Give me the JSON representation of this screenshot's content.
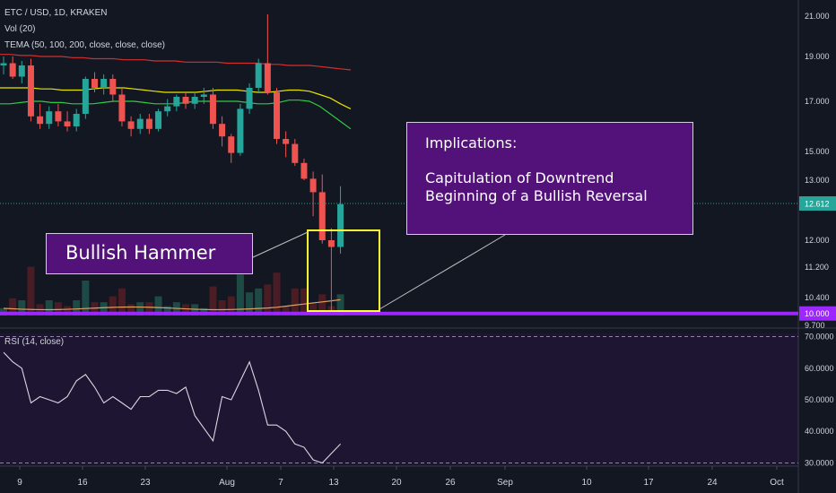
{
  "header": {
    "symbol": "ETC / USD, 1D, KRAKEN",
    "vol": "Vol (20)",
    "tema": "TEMA (50, 100, 200, close, close, close)",
    "rsi": "RSI (14, close)"
  },
  "annotations": {
    "hammer_label": "Bullish Hammer",
    "implications_title": "Implications:",
    "implications_line1": "Capitulation of Downtrend",
    "implications_line2": "Beginning of a Bullish Reversal"
  },
  "colors": {
    "background": "#131722",
    "up": "#26a69a",
    "down": "#ef5350",
    "tema50": "#2ecc40",
    "tema100": "#e6e600",
    "tema200": "#d32f2f",
    "support": "#9c27ff",
    "highlight": "#ffff33",
    "annotation_bg": "#52127a",
    "rsi_pane": "#1e1533"
  },
  "chart_data": [
    {
      "type": "candlestick",
      "title": "ETC / USD, 1D, KRAKEN",
      "x_ticks": [
        "9",
        "16",
        "23",
        "Aug",
        "7",
        "13",
        "20",
        "26",
        "Sep",
        "10",
        "17",
        "24",
        "Oct"
      ],
      "y_ticks": [
        "21.000",
        "19.000",
        "17.000",
        "15.000",
        "13.000",
        "12.000",
        "11.200",
        "10.400",
        "9.700"
      ],
      "last_price": "12.612",
      "support_level": "10.000",
      "candles": [
        {
          "o": 18.6,
          "h": 19.0,
          "l": 18.2,
          "c": 18.7
        },
        {
          "o": 18.7,
          "h": 19.0,
          "l": 18.0,
          "c": 18.1
        },
        {
          "o": 18.1,
          "h": 18.8,
          "l": 17.8,
          "c": 18.6
        },
        {
          "o": 18.6,
          "h": 18.9,
          "l": 16.2,
          "c": 16.4
        },
        {
          "o": 16.4,
          "h": 16.9,
          "l": 15.9,
          "c": 16.1
        },
        {
          "o": 16.1,
          "h": 16.8,
          "l": 15.9,
          "c": 16.6
        },
        {
          "o": 16.6,
          "h": 16.9,
          "l": 16.0,
          "c": 16.2
        },
        {
          "o": 16.2,
          "h": 16.6,
          "l": 15.8,
          "c": 16.0
        },
        {
          "o": 16.0,
          "h": 16.7,
          "l": 15.8,
          "c": 16.5
        },
        {
          "o": 16.5,
          "h": 18.1,
          "l": 16.3,
          "c": 18.0
        },
        {
          "o": 18.0,
          "h": 18.3,
          "l": 17.4,
          "c": 17.6
        },
        {
          "o": 17.6,
          "h": 18.2,
          "l": 17.3,
          "c": 18.0
        },
        {
          "o": 18.0,
          "h": 18.2,
          "l": 17.0,
          "c": 17.3
        },
        {
          "o": 17.3,
          "h": 17.6,
          "l": 16.0,
          "c": 16.2
        },
        {
          "o": 16.2,
          "h": 16.4,
          "l": 15.6,
          "c": 15.9
        },
        {
          "o": 15.9,
          "h": 16.5,
          "l": 15.7,
          "c": 16.3
        },
        {
          "o": 16.3,
          "h": 16.5,
          "l": 15.7,
          "c": 15.9
        },
        {
          "o": 15.9,
          "h": 16.7,
          "l": 15.8,
          "c": 16.6
        },
        {
          "o": 16.6,
          "h": 17.1,
          "l": 16.4,
          "c": 16.8
        },
        {
          "o": 16.8,
          "h": 17.3,
          "l": 16.6,
          "c": 17.2
        },
        {
          "o": 17.2,
          "h": 17.4,
          "l": 16.7,
          "c": 16.9
        },
        {
          "o": 16.9,
          "h": 17.4,
          "l": 16.7,
          "c": 17.2
        },
        {
          "o": 17.2,
          "h": 17.6,
          "l": 16.9,
          "c": 17.3
        },
        {
          "o": 17.3,
          "h": 17.6,
          "l": 15.9,
          "c": 16.1
        },
        {
          "o": 16.1,
          "h": 16.4,
          "l": 15.2,
          "c": 15.6
        },
        {
          "o": 15.6,
          "h": 15.7,
          "l": 14.2,
          "c": 14.9
        },
        {
          "o": 14.9,
          "h": 16.9,
          "l": 14.7,
          "c": 16.7
        },
        {
          "o": 16.7,
          "h": 17.8,
          "l": 16.5,
          "c": 17.6
        },
        {
          "o": 17.6,
          "h": 18.9,
          "l": 17.4,
          "c": 18.7
        },
        {
          "o": 18.7,
          "h": 21.1,
          "l": 17.3,
          "c": 17.4
        },
        {
          "o": 17.4,
          "h": 17.6,
          "l": 15.3,
          "c": 15.5
        },
        {
          "o": 15.5,
          "h": 15.8,
          "l": 14.6,
          "c": 15.3
        },
        {
          "o": 15.3,
          "h": 15.5,
          "l": 14.0,
          "c": 14.2
        },
        {
          "o": 14.2,
          "h": 14.5,
          "l": 13.0,
          "c": 13.1
        },
        {
          "o": 13.1,
          "h": 13.6,
          "l": 12.4,
          "c": 12.8
        },
        {
          "o": 12.8,
          "h": 13.4,
          "l": 11.9,
          "c": 12.0
        },
        {
          "o": 12.0,
          "h": 12.2,
          "l": 10.0,
          "c": 11.8
        },
        {
          "o": 11.8,
          "h": 12.9,
          "l": 11.6,
          "c": 12.6
        }
      ],
      "tema": [
        {
          "name": "TEMA 50",
          "values": [
            16.9,
            16.9,
            16.95,
            17.0,
            17.0,
            16.95,
            16.95,
            16.9,
            16.9,
            16.9,
            16.95,
            17.0,
            17.0,
            17.0,
            16.95,
            16.9,
            16.9,
            16.9,
            16.95,
            17.0,
            17.0,
            17.0,
            17.0,
            17.0,
            16.95,
            16.9,
            16.9,
            16.95,
            17.05,
            17.05,
            17.0,
            16.8,
            16.5,
            16.2,
            15.9
          ]
        },
        {
          "name": "TEMA 100",
          "values": [
            17.6,
            17.6,
            17.6,
            17.6,
            17.55,
            17.55,
            17.5,
            17.5,
            17.5,
            17.55,
            17.6,
            17.6,
            17.6,
            17.55,
            17.5,
            17.45,
            17.4,
            17.4,
            17.4,
            17.4,
            17.45,
            17.5,
            17.5,
            17.5,
            17.45,
            17.4,
            17.4,
            17.45,
            17.5,
            17.5,
            17.45,
            17.3,
            17.15,
            16.9,
            16.7
          ]
        },
        {
          "name": "TEMA 200",
          "values": [
            19.1,
            19.1,
            19.05,
            19.05,
            19.0,
            19.0,
            19.0,
            18.95,
            18.95,
            18.9,
            18.9,
            18.9,
            18.85,
            18.85,
            18.85,
            18.8,
            18.8,
            18.8,
            18.75,
            18.75,
            18.75,
            18.75,
            18.7,
            18.7,
            18.7,
            18.7,
            18.65,
            18.65,
            18.6,
            18.6,
            18.6,
            18.55,
            18.5,
            18.45,
            18.4
          ]
        }
      ]
    },
    {
      "type": "line",
      "title": "RSI (14, close)",
      "y_ticks": [
        "70.0000",
        "60.0000",
        "50.0000",
        "40.0000",
        "30.0000"
      ],
      "ylim": [
        29,
        71
      ],
      "levels": [
        70,
        30
      ],
      "values": [
        65,
        62,
        60,
        49,
        51,
        50,
        49,
        51,
        56,
        58,
        54,
        49,
        51,
        49,
        47,
        51,
        51,
        53,
        53,
        52,
        54,
        45,
        41,
        37,
        51,
        50,
        56,
        62,
        53,
        42,
        42,
        40,
        36,
        35,
        31,
        30,
        33,
        36
      ]
    }
  ]
}
